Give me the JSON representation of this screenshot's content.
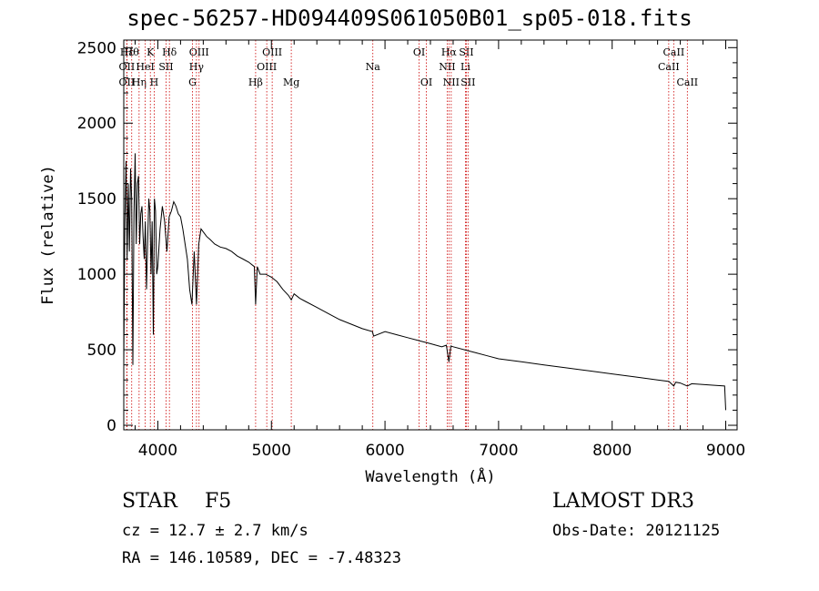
{
  "chart_data": {
    "type": "line",
    "title": "spec-56257-HD094409S061050B01_sp05-018.fits",
    "xlabel": "Wavelength (Å)",
    "ylabel": "Flux (relative)",
    "xlim": [
      3700,
      9100
    ],
    "ylim": [
      -30,
      2550
    ],
    "xticks": [
      4000,
      5000,
      6000,
      7000,
      8000,
      9000
    ],
    "yticks": [
      0,
      500,
      1000,
      1500,
      2000,
      2500
    ],
    "xtick_labels": [
      "4000",
      "5000",
      "6000",
      "7000",
      "8000",
      "9000"
    ],
    "ytick_labels": [
      "0",
      "500",
      "1000",
      "1500",
      "2000",
      "2500"
    ],
    "series": [
      {
        "name": "flux",
        "x": [
          3700,
          3710,
          3720,
          3730,
          3740,
          3750,
          3760,
          3770,
          3780,
          3790,
          3800,
          3810,
          3820,
          3830,
          3840,
          3850,
          3860,
          3870,
          3880,
          3890,
          3900,
          3910,
          3920,
          3930,
          3940,
          3950,
          3960,
          3970,
          3980,
          3990,
          4000,
          4020,
          4040,
          4060,
          4080,
          4100,
          4120,
          4140,
          4160,
          4180,
          4200,
          4220,
          4240,
          4260,
          4280,
          4300,
          4320,
          4340,
          4360,
          4380,
          4400,
          4430,
          4460,
          4500,
          4550,
          4600,
          4650,
          4700,
          4750,
          4800,
          4850,
          4861,
          4875,
          4900,
          4950,
          5000,
          5050,
          5100,
          5150,
          5175,
          5200,
          5250,
          5300,
          5400,
          5500,
          5600,
          5700,
          5800,
          5890,
          5900,
          6000,
          6100,
          6200,
          6300,
          6400,
          6500,
          6540,
          6563,
          6580,
          6600,
          6700,
          6800,
          6900,
          7000,
          7200,
          7400,
          7600,
          7800,
          8000,
          8200,
          8400,
          8500,
          8542,
          8560,
          8600,
          8662,
          8700,
          8800,
          8900,
          8990,
          9000
        ],
        "values": [
          400,
          1350,
          1750,
          1100,
          1600,
          1150,
          1700,
          1500,
          400,
          1400,
          1800,
          1200,
          1600,
          1650,
          1200,
          1400,
          1450,
          1250,
          1100,
          1350,
          900,
          1200,
          1500,
          1420,
          1000,
          1350,
          600,
          1500,
          1420,
          1000,
          1050,
          1300,
          1450,
          1350,
          1150,
          1380,
          1420,
          1480,
          1450,
          1400,
          1380,
          1300,
          1200,
          1100,
          900,
          800,
          1150,
          800,
          1200,
          1300,
          1280,
          1250,
          1230,
          1200,
          1180,
          1170,
          1150,
          1120,
          1100,
          1080,
          1050,
          800,
          1050,
          1000,
          1000,
          980,
          950,
          900,
          860,
          830,
          870,
          840,
          820,
          780,
          740,
          700,
          670,
          640,
          620,
          590,
          620,
          600,
          580,
          560,
          540,
          520,
          530,
          420,
          525,
          520,
          500,
          480,
          460,
          440,
          420,
          400,
          380,
          360,
          340,
          320,
          300,
          290,
          260,
          285,
          280,
          260,
          275,
          270,
          265,
          260,
          100
        ]
      }
    ],
    "lines": [
      {
        "name": "Hε",
        "x": 3728,
        "row": 1,
        "color": "#cc0000"
      },
      {
        "name": "Hθ",
        "x": 3770,
        "row": 1,
        "color": "#cc0000"
      },
      {
        "name": "OII",
        "x": 3727,
        "row": 2,
        "color": "#cc0000"
      },
      {
        "name": "OII",
        "x": 3727,
        "row": 3,
        "color": "#cc0000"
      },
      {
        "name": "Hη",
        "x": 3835,
        "row": 3,
        "color": "#cc0000"
      },
      {
        "name": "K",
        "x": 3934,
        "row": 1,
        "color": "#cc0000"
      },
      {
        "name": "HeI",
        "x": 3889,
        "row": 2,
        "color": "#cc0000"
      },
      {
        "name": "SII",
        "x": 4072,
        "row": 2,
        "color": "#cc0000"
      },
      {
        "name": "H",
        "x": 3968,
        "row": 3,
        "color": "#cc0000"
      },
      {
        "name": "Hδ",
        "x": 4102,
        "row": 1,
        "color": "#cc0000"
      },
      {
        "name": "OIII",
        "x": 4363,
        "row": 1,
        "color": "#cc0000"
      },
      {
        "name": "Hγ",
        "x": 4340,
        "row": 2,
        "color": "#cc0000"
      },
      {
        "name": "G",
        "x": 4305,
        "row": 3,
        "color": "#cc0000"
      },
      {
        "name": "OIII",
        "x": 5007,
        "row": 1,
        "color": "#cc0000"
      },
      {
        "name": "OIII",
        "x": 4959,
        "row": 2,
        "color": "#cc0000"
      },
      {
        "name": "Hβ",
        "x": 4861,
        "row": 3,
        "color": "#cc0000"
      },
      {
        "name": "Mg",
        "x": 5175,
        "row": 3,
        "color": "#cc0000"
      },
      {
        "name": "Na",
        "x": 5893,
        "row": 2,
        "color": "#cc0000"
      },
      {
        "name": "OI",
        "x": 6300,
        "row": 1,
        "color": "#cc0000"
      },
      {
        "name": "OI",
        "x": 6364,
        "row": 3,
        "color": "#cc0000"
      },
      {
        "name": "Hα",
        "x": 6563,
        "row": 1,
        "color": "#cc0000"
      },
      {
        "name": "SII",
        "x": 6716,
        "row": 1,
        "color": "#cc0000"
      },
      {
        "name": "NII",
        "x": 6548,
        "row": 2,
        "color": "#cc0000"
      },
      {
        "name": "Li",
        "x": 6708,
        "row": 2,
        "color": "#cc0000"
      },
      {
        "name": "NII",
        "x": 6583,
        "row": 3,
        "color": "#cc0000"
      },
      {
        "name": "SII",
        "x": 6731,
        "row": 3,
        "color": "#cc0000"
      },
      {
        "name": "CaII",
        "x": 8542,
        "row": 1,
        "color": "#cc0000"
      },
      {
        "name": "CaII",
        "x": 8498,
        "row": 2,
        "color": "#cc0000"
      },
      {
        "name": "CaII",
        "x": 8662,
        "row": 3,
        "color": "#cc0000"
      }
    ]
  },
  "info": {
    "object_class": "STAR",
    "subclass": "F5",
    "cz": "cz = 12.7 ± 2.7 km/s",
    "radec": "RA = 146.10589, DEC =  -7.48323",
    "survey": "LAMOST DR3",
    "obs_date": "Obs-Date: 20121125"
  }
}
